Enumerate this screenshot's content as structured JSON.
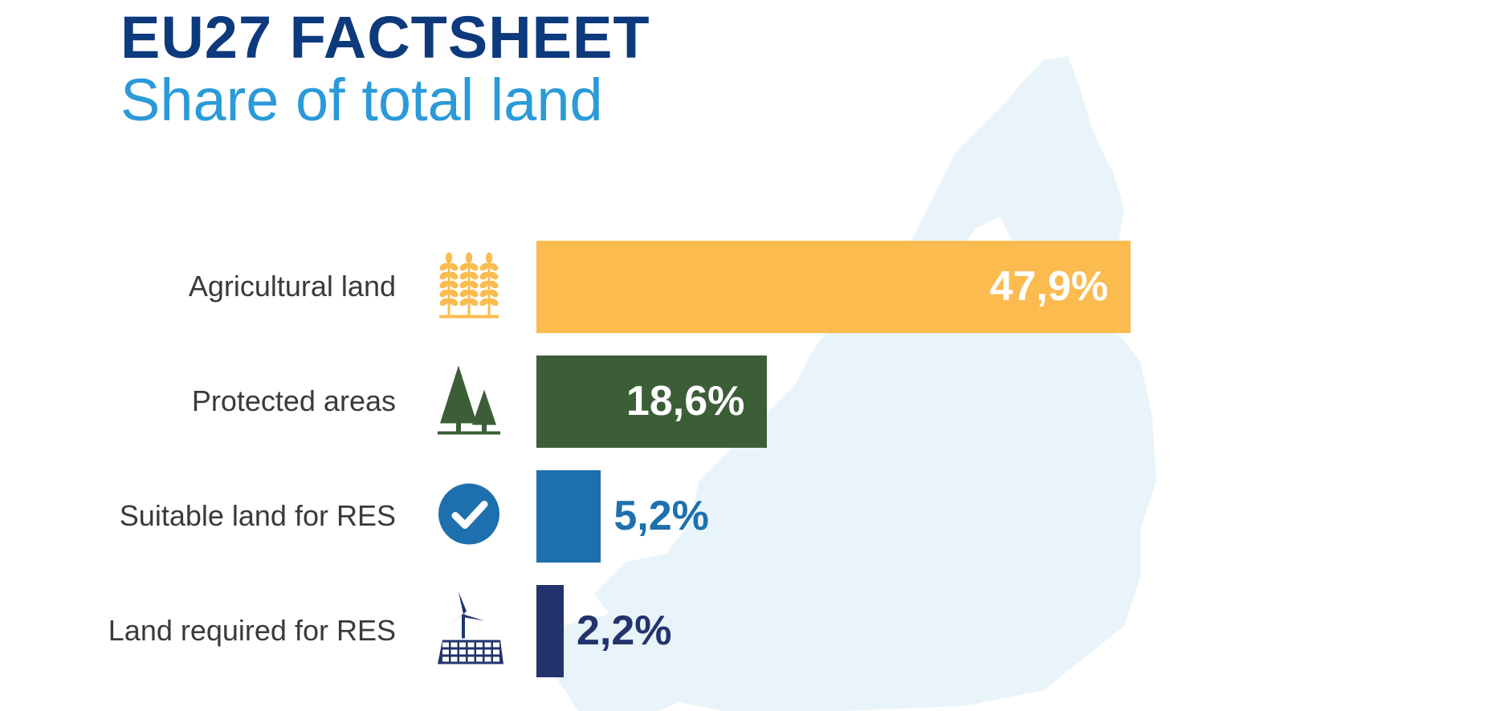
{
  "header": {
    "title": "EU27 FACTSHEET",
    "subtitle": "Share of total land"
  },
  "colors": {
    "title": "#0d3a7c",
    "subtitle": "#2a9ad8",
    "map": "#e8f4fa",
    "agricultural": "#fbbb4e",
    "protected": "#3b5e37",
    "suitable": "#1d70ad",
    "required": "#23336d"
  },
  "chart_data": {
    "type": "bar",
    "orientation": "horizontal",
    "title": "Share of total land",
    "value_format": "percent with comma decimal",
    "categories": [
      "Agricultural land",
      "Protected areas",
      "Suitable land for RES",
      "Land required for RES"
    ],
    "values": [
      47.9,
      18.6,
      5.2,
      2.2
    ],
    "value_labels": [
      "47,9%",
      "18,6%",
      "5,2%",
      "2,2%"
    ],
    "icons": [
      "wheat-icon",
      "pine-trees-icon",
      "checkmark-circle-icon",
      "wind-solar-icon"
    ],
    "bar_colors": [
      "#fbbb4e",
      "#3b5e37",
      "#1d70ad",
      "#23336d"
    ],
    "label_inside": [
      true,
      true,
      false,
      false
    ],
    "xlim": [
      0,
      47.9
    ]
  }
}
